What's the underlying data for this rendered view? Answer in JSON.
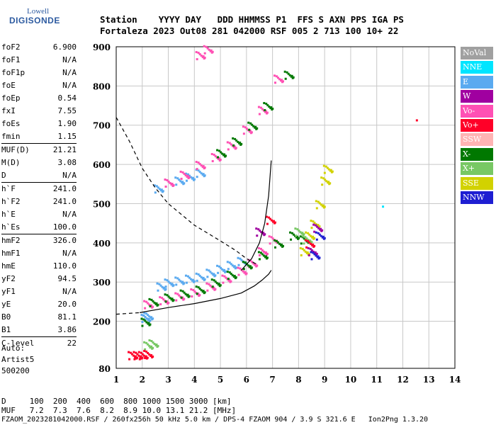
{
  "logo": {
    "line1": "Lowell",
    "line2": "DIGISONDE"
  },
  "header": {
    "line1": "Station    YYYY DAY   DDD HHMMSS P1  FFS S AXN PPS IGA PS",
    "line2": "Fortaleza 2023 Out08 281 042000 RSF 005 2 713 100 10+ 22"
  },
  "params": [
    {
      "group": [
        {
          "k": "foF2",
          "v": "6.900"
        },
        {
          "k": "foF1",
          "v": "N/A"
        },
        {
          "k": "foF1p",
          "v": "N/A"
        },
        {
          "k": "foE",
          "v": "N/A"
        },
        {
          "k": "foEp",
          "v": "0.54"
        },
        {
          "k": "fxI",
          "v": "7.55"
        },
        {
          "k": "foEs",
          "v": "1.90"
        },
        {
          "k": "fmin",
          "v": "1.15"
        }
      ]
    },
    {
      "group": [
        {
          "k": "MUF(D)",
          "v": "21.21"
        },
        {
          "k": "M(D)",
          "v": "3.08"
        },
        {
          "k": "D",
          "v": "N/A"
        }
      ]
    },
    {
      "group": [
        {
          "k": "h`F",
          "v": "241.0"
        },
        {
          "k": "h`F2",
          "v": "241.0"
        },
        {
          "k": "h`E",
          "v": "N/A"
        },
        {
          "k": "h`Es",
          "v": "100.0"
        }
      ]
    },
    {
      "group": [
        {
          "k": "hmF2",
          "v": "326.0"
        },
        {
          "k": "hmF1",
          "v": "N/A"
        },
        {
          "k": "hmE",
          "v": "110.0"
        },
        {
          "k": "yF2",
          "v": "94.5"
        },
        {
          "k": "yF1",
          "v": "N/A"
        },
        {
          "k": "yE",
          "v": "20.0"
        },
        {
          "k": "B0",
          "v": "81.1"
        },
        {
          "k": "B1",
          "v": "3.86"
        }
      ]
    },
    {
      "group": [
        {
          "k": "C-level",
          "v": "22"
        }
      ]
    }
  ],
  "auto": {
    "line1": "Auto:",
    "line2": "Artist5",
    "line3": "500200"
  },
  "legend": [
    {
      "label": "NoVal",
      "color": "#a0a0a0"
    },
    {
      "label": "NNE",
      "color": "#00e5ff"
    },
    {
      "label": "E",
      "color": "#5aaaf0"
    },
    {
      "label": "W",
      "color": "#a000a0"
    },
    {
      "label": "Vo-",
      "color": "#ff50b4"
    },
    {
      "label": "Vo+",
      "color": "#ff0028"
    },
    {
      "label": "SSW",
      "color": "#ffb4b4"
    },
    {
      "label": "X-",
      "color": "#007800"
    },
    {
      "label": "X+",
      "color": "#78c864"
    },
    {
      "label": "SSE",
      "color": "#d2d200"
    },
    {
      "label": "NNW",
      "color": "#1e1ed2"
    }
  ],
  "chart_data": {
    "type": "scatter",
    "xlim": [
      1,
      14
    ],
    "ylim": [
      80,
      900
    ],
    "x_ticks": [
      "1",
      "2",
      "3",
      "4",
      "5",
      "6",
      "7",
      "8",
      "9",
      "10",
      "11",
      "12",
      "13",
      "14"
    ],
    "y_ticks": [
      80,
      200,
      300,
      400,
      500,
      600,
      700,
      800,
      900
    ],
    "grid": true,
    "series": [
      {
        "name": "E",
        "color": "#5aaaf0",
        "points": [
          [
            2.7,
            290
          ],
          [
            3.0,
            300
          ],
          [
            3.4,
            305
          ],
          [
            3.8,
            310
          ],
          [
            4.2,
            315
          ],
          [
            4.6,
            325
          ],
          [
            5.0,
            335
          ],
          [
            5.4,
            345
          ],
          [
            5.8,
            355
          ],
          [
            2.6,
            540
          ],
          [
            3.0,
            555
          ],
          [
            3.4,
            560
          ],
          [
            3.8,
            570
          ],
          [
            4.2,
            580
          ],
          [
            2.1,
            210
          ],
          [
            2.2,
            215
          ]
        ]
      },
      {
        "name": "Vo-",
        "color": "#ff50b4",
        "points": [
          [
            2.2,
            245
          ],
          [
            2.8,
            255
          ],
          [
            3.4,
            265
          ],
          [
            4.0,
            275
          ],
          [
            4.6,
            290
          ],
          [
            5.2,
            310
          ],
          [
            5.8,
            330
          ],
          [
            6.2,
            350
          ],
          [
            6.6,
            380
          ],
          [
            7.0,
            410
          ],
          [
            3.0,
            555
          ],
          [
            3.6,
            575
          ],
          [
            4.2,
            600
          ],
          [
            4.8,
            620
          ],
          [
            5.4,
            650
          ],
          [
            6.0,
            690
          ],
          [
            6.6,
            740
          ],
          [
            7.2,
            820
          ],
          [
            4.2,
            880
          ],
          [
            4.5,
            895
          ]
        ]
      },
      {
        "name": "X-",
        "color": "#007800",
        "points": [
          [
            2.4,
            250
          ],
          [
            3.0,
            262
          ],
          [
            3.6,
            272
          ],
          [
            4.2,
            282
          ],
          [
            4.8,
            300
          ],
          [
            5.4,
            320
          ],
          [
            6.0,
            345
          ],
          [
            6.6,
            370
          ],
          [
            7.2,
            400
          ],
          [
            7.8,
            420
          ],
          [
            8.2,
            410
          ],
          [
            5.0,
            630
          ],
          [
            5.6,
            660
          ],
          [
            6.2,
            700
          ],
          [
            6.8,
            750
          ],
          [
            7.6,
            830
          ],
          [
            2.1,
            200
          ]
        ]
      },
      {
        "name": "SSE",
        "color": "#d2d200",
        "points": [
          [
            8.4,
            420
          ],
          [
            8.6,
            450
          ],
          [
            8.8,
            500
          ],
          [
            9.0,
            560
          ],
          [
            9.1,
            590
          ],
          [
            8.2,
            380
          ]
        ]
      },
      {
        "name": "X+",
        "color": "#78c864",
        "points": [
          [
            2.2,
            140
          ],
          [
            2.4,
            145
          ],
          [
            8.0,
            430
          ],
          [
            8.3,
            410
          ]
        ]
      },
      {
        "name": "Vo+",
        "color": "#ff0028",
        "points": [
          [
            1.6,
            115
          ],
          [
            1.8,
            115
          ],
          [
            2.0,
            115
          ],
          [
            2.2,
            118
          ],
          [
            6.9,
            460
          ],
          [
            8.4,
            400
          ]
        ]
      },
      {
        "name": "W",
        "color": "#a000a0",
        "points": [
          [
            8.5,
            380
          ],
          [
            6.5,
            430
          ],
          [
            8.7,
            440
          ]
        ]
      },
      {
        "name": "NNW",
        "color": "#1e1ed2",
        "points": [
          [
            8.6,
            370
          ],
          [
            8.8,
            420
          ]
        ]
      }
    ],
    "profile_solid": [
      [
        1.9,
        222
      ],
      [
        3.0,
        235
      ],
      [
        4.0,
        245
      ],
      [
        5.0,
        258
      ],
      [
        5.8,
        272
      ],
      [
        6.3,
        290
      ],
      [
        6.6,
        305
      ],
      [
        6.85,
        320
      ],
      [
        6.95,
        330
      ]
    ],
    "profile_solid2": [
      [
        5.8,
        330
      ],
      [
        6.2,
        360
      ],
      [
        6.5,
        400
      ],
      [
        6.7,
        450
      ],
      [
        6.85,
        520
      ],
      [
        6.95,
        610
      ]
    ],
    "profile_dashed": [
      [
        1.0,
        720
      ],
      [
        1.5,
        660
      ],
      [
        2.0,
        590
      ],
      [
        2.5,
        540
      ],
      [
        3.0,
        500
      ],
      [
        4.0,
        445
      ],
      [
        5.0,
        405
      ],
      [
        5.6,
        380
      ],
      [
        6.0,
        360
      ],
      [
        6.4,
        345
      ]
    ],
    "profile_lower": [
      [
        1.0,
        218
      ],
      [
        1.9,
        222
      ]
    ]
  },
  "footer": {
    "line1": "D     100  200  400  600  800 1000 1500 3000 [km]",
    "line2": "MUF   7.2  7.3  7.6  8.2  8.9 10.0 13.1 21.2 [MHz]",
    "line3": "FZAOM_2023281042000.RSF / 260fx256h 50 kHz 5.0 km / DPS-4 FZAOM 904 / 3.9 S 321.6 E   Ion2Png 1.3.20"
  }
}
